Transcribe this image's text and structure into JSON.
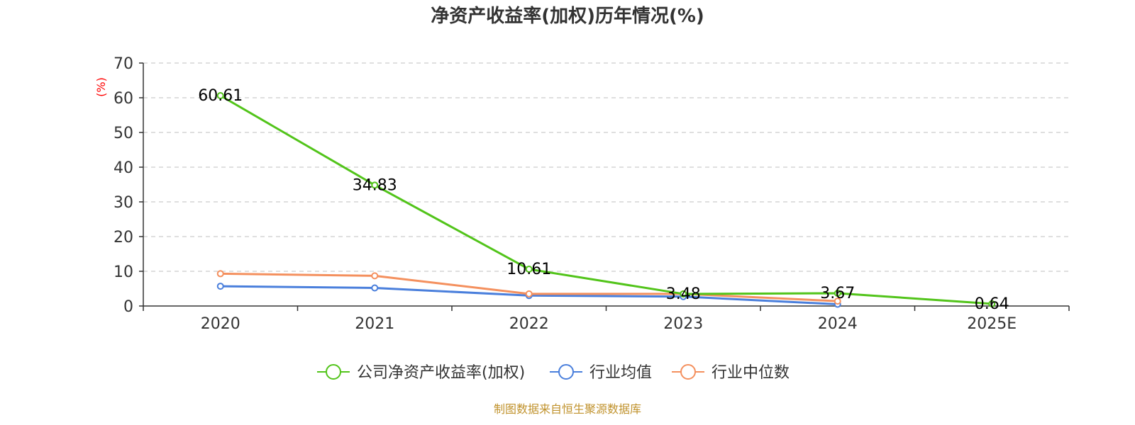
{
  "chart_data": {
    "type": "line",
    "title": "净资产收益率(加权)历年情况(%)",
    "xlabel": "",
    "ylabel": "(%)",
    "ylim": [
      0,
      70
    ],
    "yticks": [
      0,
      10,
      20,
      30,
      40,
      50,
      60,
      70
    ],
    "categories": [
      "2020",
      "2021",
      "2022",
      "2023",
      "2024",
      "2025E"
    ],
    "grid": true,
    "legend_position": "bottom",
    "series": [
      {
        "name": "公司净资产收益率(加权)",
        "color": "#52c41a",
        "values": [
          60.61,
          34.83,
          10.61,
          3.48,
          3.67,
          0.64
        ],
        "labels": [
          "60.61",
          "34.83",
          "10.61",
          "3.48",
          "3.67",
          "0.64"
        ]
      },
      {
        "name": "行业均值",
        "color": "#4a7fdc",
        "values": [
          5.7,
          5.2,
          3.0,
          2.7,
          0.5,
          null
        ]
      },
      {
        "name": "行业中位数",
        "color": "#f4905e",
        "values": [
          9.3,
          8.7,
          3.5,
          3.5,
          1.4,
          null
        ]
      }
    ],
    "source": "制图数据来自恒生聚源数据库"
  }
}
